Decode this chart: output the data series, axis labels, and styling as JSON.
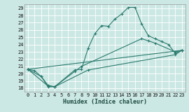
{
  "xlabel": "Humidex (Indice chaleur)",
  "background_color": "#cce8e4",
  "line_color": "#2a7a6e",
  "grid_color": "#ffffff",
  "xlim": [
    -0.5,
    23.5
  ],
  "ylim": [
    17.5,
    29.5
  ],
  "xticks": [
    0,
    1,
    2,
    3,
    4,
    5,
    6,
    7,
    8,
    9,
    10,
    11,
    12,
    13,
    14,
    15,
    16,
    17,
    18,
    19,
    20,
    21,
    22,
    23
  ],
  "yticks": [
    18,
    19,
    20,
    21,
    22,
    23,
    24,
    25,
    26,
    27,
    28,
    29
  ],
  "line1_x": [
    0,
    1,
    2,
    3,
    4,
    7,
    8,
    9,
    10,
    11,
    12,
    13,
    14,
    15,
    16,
    17,
    18,
    19,
    20,
    21,
    22,
    23
  ],
  "line1_y": [
    20.6,
    20.4,
    19.6,
    18.2,
    18.2,
    20.5,
    20.6,
    23.5,
    25.5,
    26.6,
    26.5,
    27.5,
    28.2,
    29.1,
    29.1,
    26.8,
    25.2,
    24.8,
    24.4,
    24.0,
    22.8,
    23.2
  ],
  "line2_x": [
    0,
    2,
    3,
    4,
    7,
    8,
    17,
    18,
    19,
    22,
    23
  ],
  "line2_y": [
    20.6,
    19.6,
    18.4,
    18.2,
    20.3,
    21.0,
    24.8,
    24.5,
    24.2,
    23.0,
    23.2
  ],
  "line3_x": [
    0,
    3,
    4,
    9,
    22,
    23
  ],
  "line3_y": [
    20.6,
    18.3,
    18.2,
    20.5,
    22.6,
    23.2
  ],
  "line4_x": [
    0,
    23
  ],
  "line4_y": [
    20.6,
    23.2
  ]
}
